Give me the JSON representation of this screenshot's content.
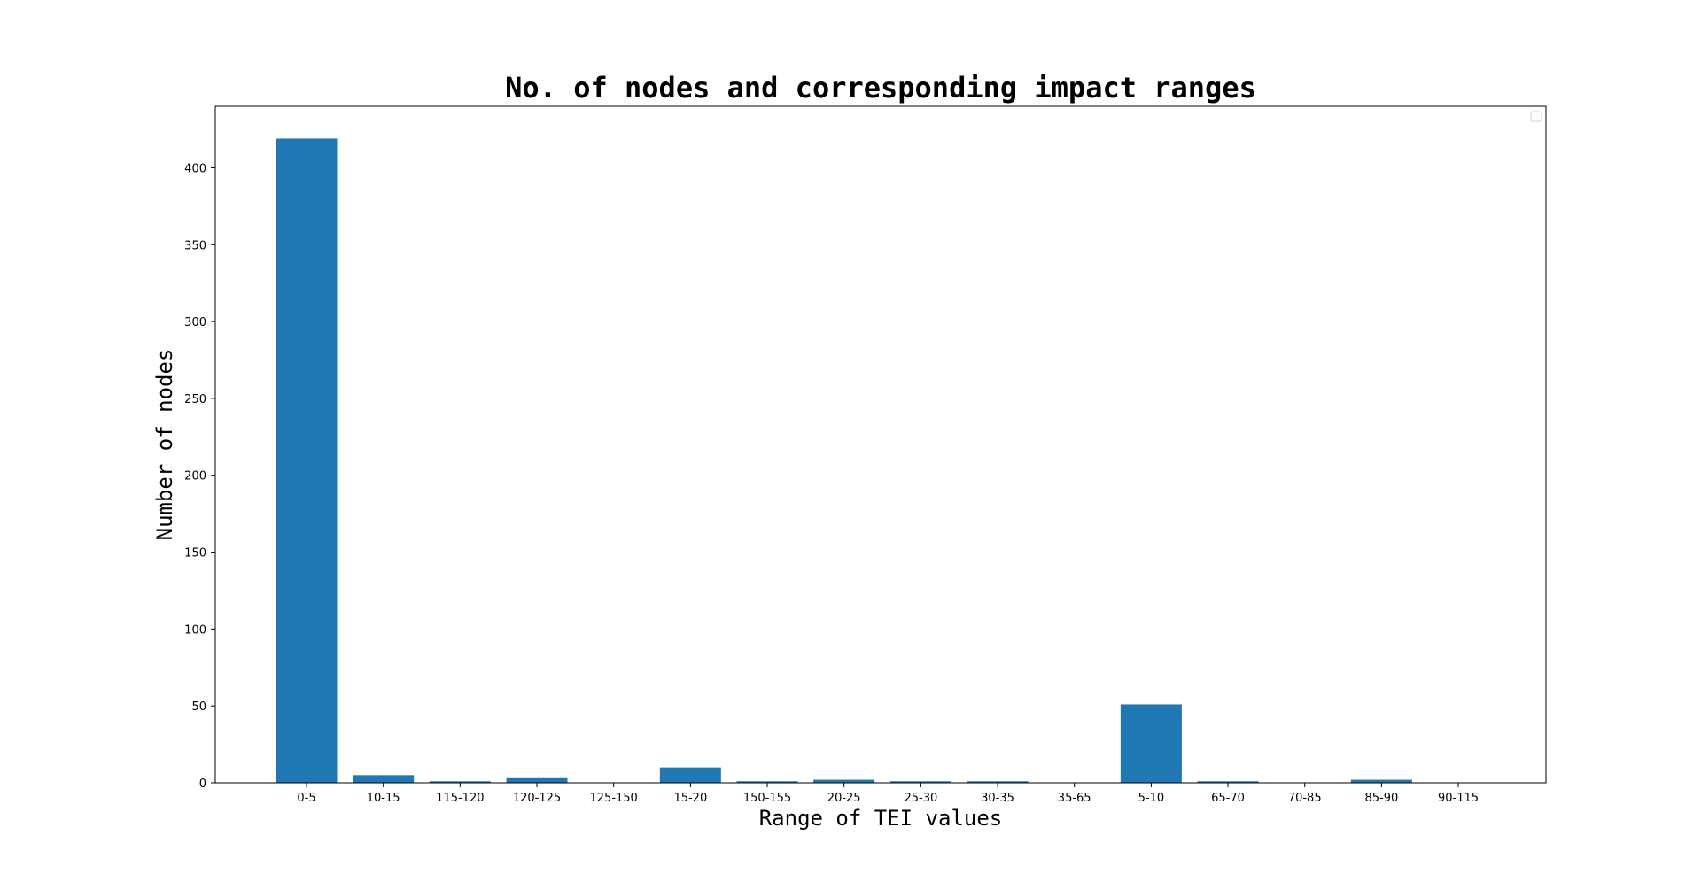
{
  "chart_data": {
    "type": "bar",
    "title": "No. of nodes and corresponding impact ranges",
    "xlabel": "Range of TEI values",
    "ylabel": "Number of nodes",
    "categories": [
      "0-5",
      "10-15",
      "115-120",
      "120-125",
      "125-150",
      "15-20",
      "150-155",
      "20-25",
      "25-30",
      "30-35",
      "35-65",
      "5-10",
      "65-70",
      "70-85",
      "85-90",
      "90-115"
    ],
    "values": [
      419,
      5,
      1,
      3,
      0,
      10,
      1,
      2,
      1,
      1,
      0,
      51,
      1,
      0,
      2,
      0
    ],
    "yticks": [
      0,
      50,
      100,
      150,
      200,
      250,
      300,
      350,
      400
    ],
    "ylim": [
      0,
      440
    ],
    "grid": false,
    "legend": {
      "position": "top-right",
      "entries": []
    },
    "colors": {
      "bar": "#1f77b4",
      "axis": "#000000",
      "background": "#ffffff"
    }
  }
}
